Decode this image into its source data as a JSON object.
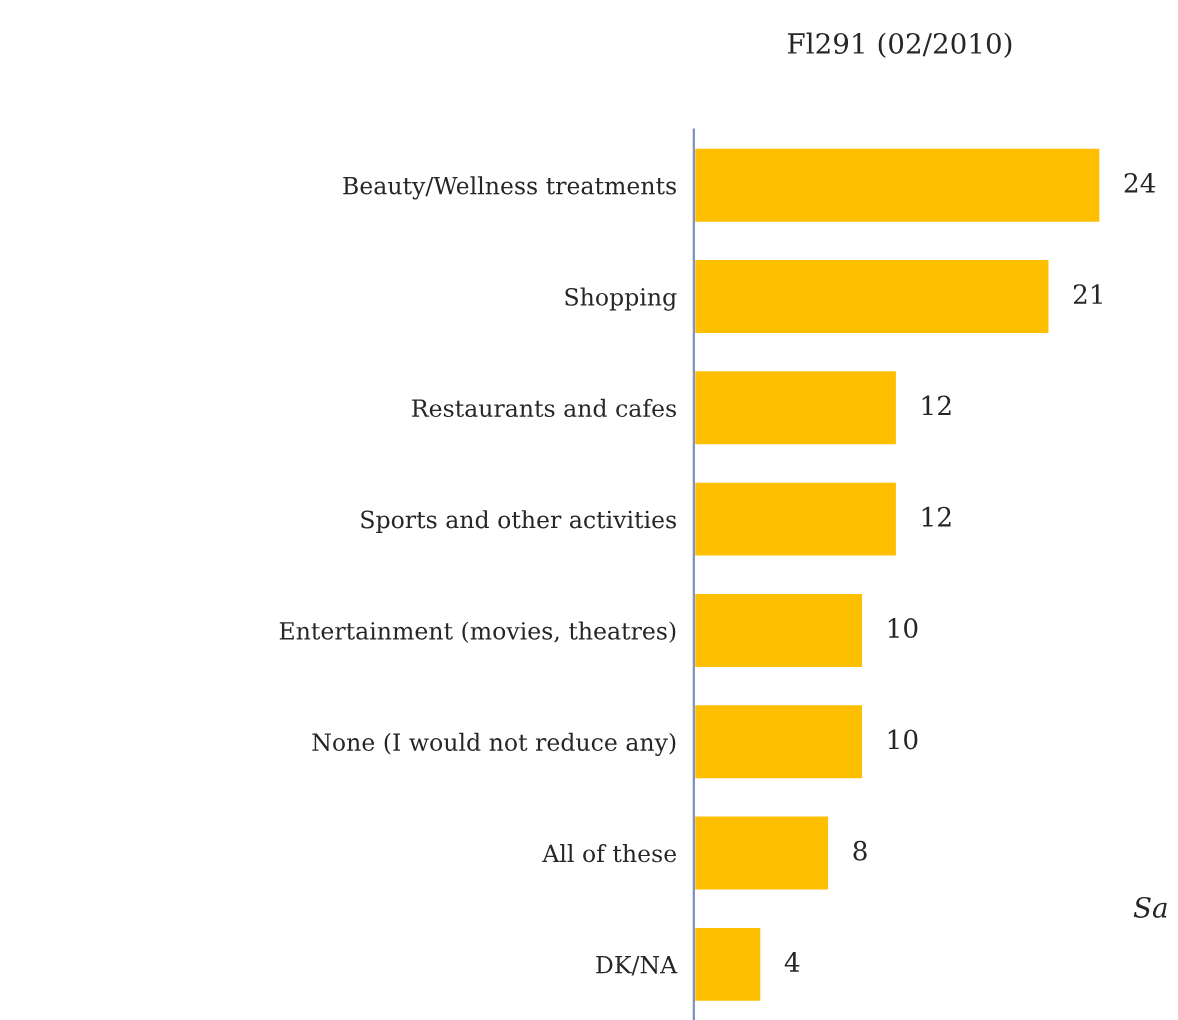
{
  "chart_data": {
    "type": "bar",
    "orientation": "horizontal",
    "title": "Fl291 (02/2010)",
    "categories": [
      "Beauty/Wellness treatments",
      "Shopping",
      "Restaurants and cafes",
      "Sports and other activities",
      "Entertainment (movies, theatres)",
      "None (I would not reduce any)",
      "All of these",
      "DK/NA"
    ],
    "values": [
      24,
      21,
      12,
      12,
      10,
      10,
      8,
      4
    ],
    "color": "#fdbf00",
    "data_labels": true,
    "grid": false,
    "legend": false,
    "tick_labels": "y",
    "annotations": [
      "Sa"
    ]
  }
}
